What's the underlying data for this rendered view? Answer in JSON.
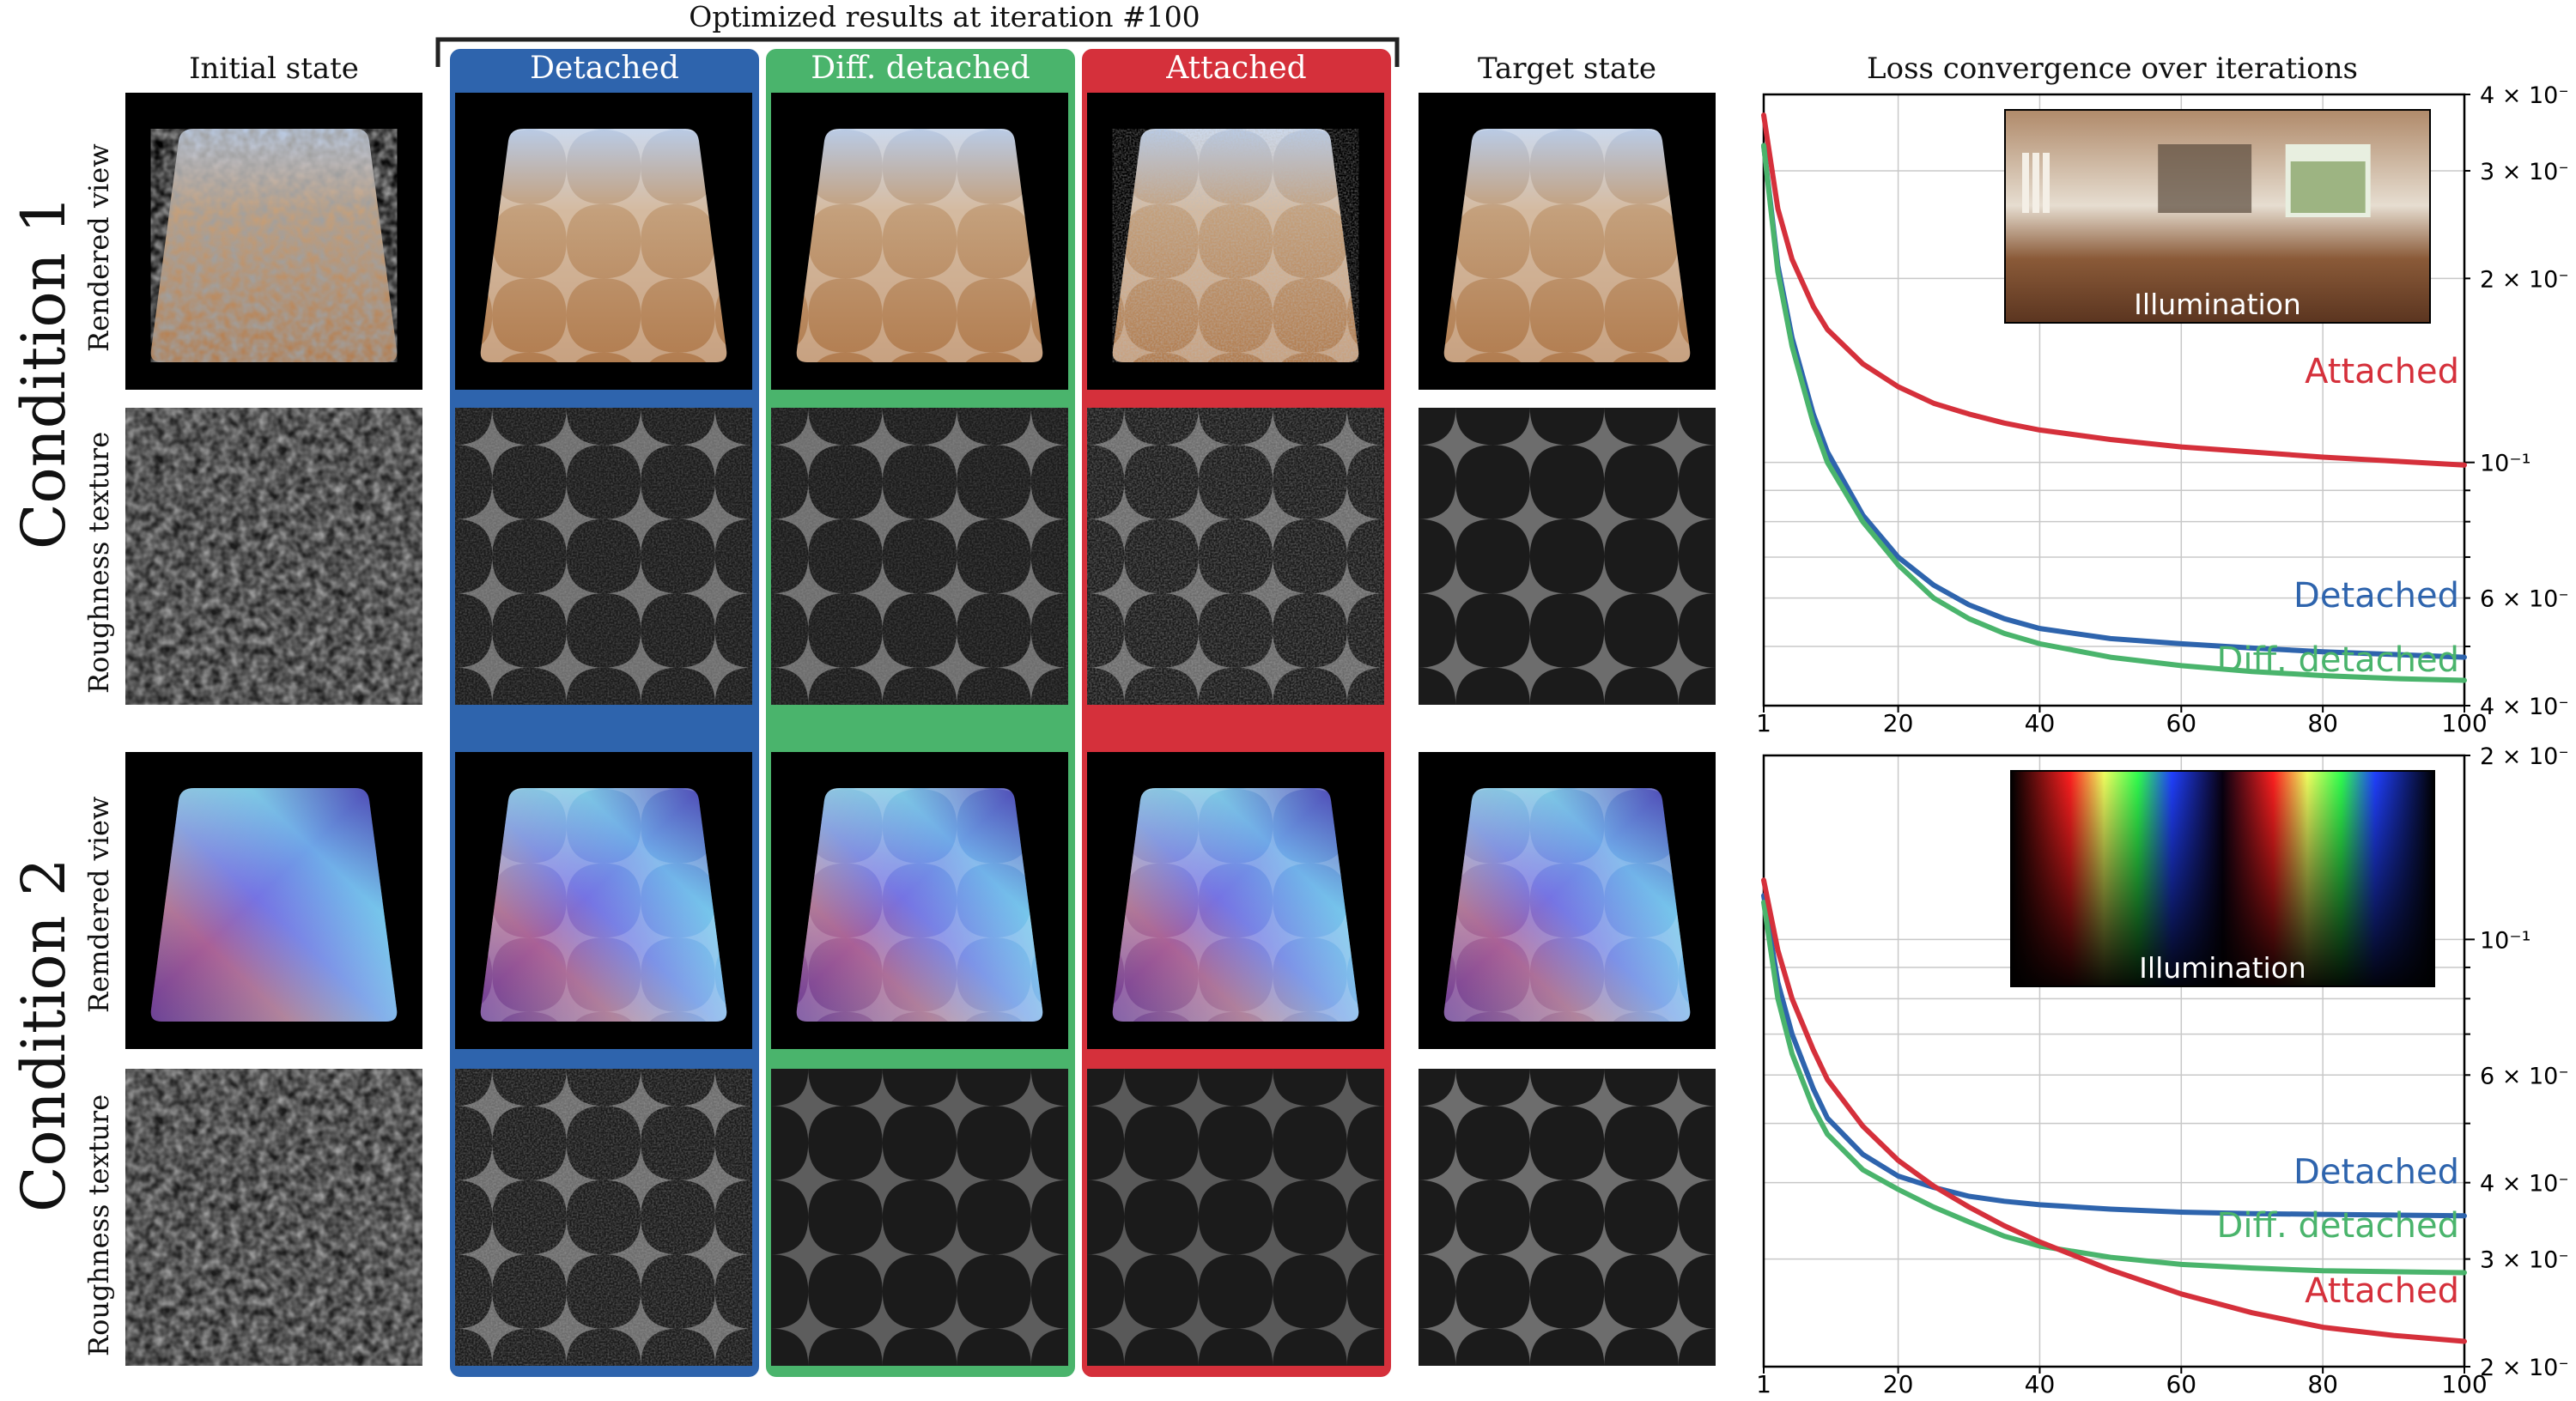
{
  "header": {
    "title": "Optimized results at iteration #100",
    "col_initial": "Initial state",
    "col_target": "Target state",
    "methods": [
      {
        "label": "Detached",
        "color": "#2e64ad"
      },
      {
        "label": "Diff. detached",
        "color": "#4ab46c"
      },
      {
        "label": "Attached",
        "color": "#d5303b"
      }
    ],
    "loss_title": "Loss convergence over iterations"
  },
  "conditions": [
    {
      "label": "Condition 1",
      "row_labels": [
        "Rendered view",
        "Roughness texture"
      ]
    },
    {
      "label": "Condition 2",
      "row_labels": [
        "Remdered view",
        "Roughness texture"
      ]
    }
  ],
  "chart_data": [
    {
      "type": "line",
      "title": "",
      "xlabel": "",
      "ylabel": "",
      "xlim": [
        1,
        100
      ],
      "ylim": [
        0.04,
        0.4
      ],
      "yscale": "log",
      "grid": true,
      "xticks": [
        "1",
        "20",
        "40",
        "60",
        "80",
        "100"
      ],
      "yticks": [
        {
          "value": 0.4,
          "label": "4 × 10⁻¹"
        },
        {
          "value": 0.3,
          "label": "3 × 10⁻¹"
        },
        {
          "value": 0.2,
          "label": "2 × 10⁻¹"
        },
        {
          "value": 0.1,
          "label": "10⁻¹"
        },
        {
          "value": 0.06,
          "label": "6 × 10⁻²"
        },
        {
          "value": 0.04,
          "label": "4 × 10⁻²"
        }
      ],
      "inset_label": "Illumination",
      "series": [
        {
          "name": "Attached",
          "color": "#d5303b",
          "x": [
            1,
            3,
            5,
            8,
            10,
            15,
            20,
            25,
            30,
            35,
            40,
            50,
            60,
            70,
            80,
            90,
            100
          ],
          "y": [
            0.37,
            0.26,
            0.215,
            0.18,
            0.165,
            0.145,
            0.133,
            0.125,
            0.12,
            0.116,
            0.113,
            0.109,
            0.106,
            0.104,
            0.102,
            0.1005,
            0.099
          ]
        },
        {
          "name": "Detached",
          "color": "#2e64ad",
          "x": [
            1,
            3,
            5,
            8,
            10,
            15,
            20,
            25,
            30,
            35,
            40,
            50,
            60,
            70,
            80,
            90,
            100
          ],
          "y": [
            0.33,
            0.21,
            0.16,
            0.12,
            0.104,
            0.082,
            0.07,
            0.063,
            0.0585,
            0.0555,
            0.0535,
            0.0515,
            0.0505,
            0.0497,
            0.049,
            0.0485,
            0.048
          ]
        },
        {
          "name": "Diff. detached",
          "color": "#4ab46c",
          "x": [
            1,
            3,
            5,
            8,
            10,
            15,
            20,
            25,
            30,
            35,
            40,
            50,
            60,
            70,
            80,
            90,
            100
          ],
          "y": [
            0.33,
            0.205,
            0.155,
            0.116,
            0.1,
            0.08,
            0.068,
            0.06,
            0.0555,
            0.0525,
            0.0505,
            0.048,
            0.0465,
            0.0455,
            0.0448,
            0.0443,
            0.044
          ]
        }
      ]
    },
    {
      "type": "line",
      "title": "",
      "xlabel": "",
      "ylabel": "",
      "xlim": [
        1,
        100
      ],
      "ylim": [
        0.02,
        0.2
      ],
      "yscale": "log",
      "grid": true,
      "xticks": [
        "1",
        "20",
        "40",
        "60",
        "80",
        "100"
      ],
      "yticks": [
        {
          "value": 0.2,
          "label": "2 × 10⁻¹"
        },
        {
          "value": 0.1,
          "label": "10⁻¹"
        },
        {
          "value": 0.06,
          "label": "6 × 10⁻²"
        },
        {
          "value": 0.04,
          "label": "4 × 10⁻²"
        },
        {
          "value": 0.03,
          "label": "3 × 10⁻²"
        },
        {
          "value": 0.02,
          "label": "2 × 10⁻²"
        }
      ],
      "inset_label": "Illumination",
      "series": [
        {
          "name": "Detached",
          "color": "#2e64ad",
          "x": [
            1,
            3,
            5,
            8,
            10,
            15,
            20,
            25,
            30,
            35,
            40,
            50,
            60,
            70,
            80,
            90,
            100
          ],
          "y": [
            0.118,
            0.085,
            0.07,
            0.057,
            0.051,
            0.0445,
            0.041,
            0.0393,
            0.038,
            0.0373,
            0.0368,
            0.0362,
            0.0358,
            0.0356,
            0.0355,
            0.0354,
            0.0353
          ]
        },
        {
          "name": "Diff. detached",
          "color": "#4ab46c",
          "x": [
            1,
            3,
            5,
            8,
            10,
            15,
            20,
            25,
            30,
            35,
            40,
            50,
            60,
            70,
            80,
            90,
            100
          ],
          "y": [
            0.115,
            0.08,
            0.065,
            0.053,
            0.048,
            0.042,
            0.039,
            0.0365,
            0.0345,
            0.0327,
            0.0315,
            0.0302,
            0.0294,
            0.029,
            0.0287,
            0.0286,
            0.0285
          ]
        },
        {
          "name": "Attached",
          "color": "#d5303b",
          "x": [
            1,
            3,
            5,
            8,
            10,
            15,
            20,
            25,
            30,
            35,
            40,
            50,
            60,
            70,
            80,
            90,
            100
          ],
          "y": [
            0.125,
            0.096,
            0.08,
            0.066,
            0.059,
            0.0495,
            0.0435,
            0.0395,
            0.0365,
            0.034,
            0.032,
            0.0288,
            0.0263,
            0.0245,
            0.0232,
            0.0225,
            0.022
          ]
        }
      ]
    }
  ]
}
